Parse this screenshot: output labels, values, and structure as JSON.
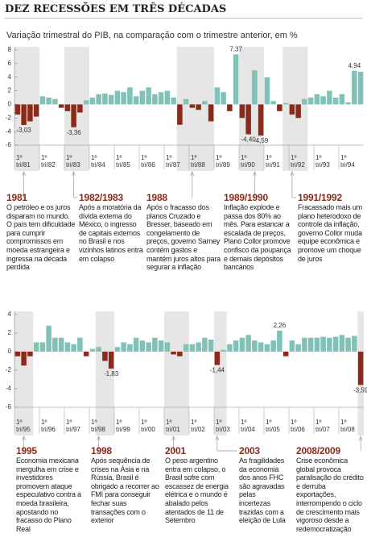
{
  "title": "DEZ RECESSÕES EM TRÊS DÉCADAS",
  "subtitle": "Variação trimestral do PIB, na comparação com o trimestre anterior, em %",
  "chart_data": [
    {
      "type": "bar",
      "quarter_mark": "1º",
      "color": "#80c2b8",
      "negative_color": "#8b2a1a",
      "categories": [
        "tri/81",
        null,
        null,
        null,
        "tri/82",
        null,
        null,
        null,
        "tri/83",
        null,
        null,
        null,
        "tri/84",
        null,
        null,
        null,
        "tri/85",
        null,
        null,
        null,
        "tri/86",
        null,
        null,
        null,
        "tri/87",
        null,
        null,
        null,
        "tri/88",
        null,
        null,
        null,
        "tri/89",
        null,
        null,
        null,
        "tri/90",
        null,
        null,
        null,
        "tri/91",
        null,
        null,
        null,
        "tri/92",
        null,
        null,
        null,
        "tri/93",
        null,
        null,
        null,
        "tri/94",
        null,
        null,
        null
      ],
      "values": [
        -1.5,
        -3.03,
        -2.5,
        -1.8,
        1.2,
        1.0,
        0.8,
        -0.5,
        -1.0,
        -3.36,
        -1.2,
        0.6,
        1.0,
        1.5,
        1.6,
        1.4,
        2.0,
        1.8,
        2.5,
        1.2,
        2.0,
        2.5,
        1.5,
        1.8,
        2.0,
        1.0,
        -3.0,
        0.8,
        -0.5,
        -0.8,
        0.5,
        -2.5,
        2.5,
        1.8,
        -1.0,
        7.37,
        -2.0,
        -4.4,
        5.0,
        -4.59,
        4.0,
        0.5,
        -1.0,
        0.2,
        -1.5,
        -2.0,
        0.8,
        1.0,
        1.5,
        1.2,
        2.0,
        1.0,
        1.5,
        0.3,
        4.94,
        4.8
      ],
      "value_labels": [
        null,
        "-3,03",
        null,
        null,
        null,
        null,
        null,
        null,
        null,
        "-3,36",
        null,
        null,
        null,
        null,
        null,
        null,
        null,
        null,
        null,
        null,
        null,
        null,
        null,
        null,
        null,
        null,
        null,
        null,
        null,
        null,
        null,
        null,
        null,
        null,
        null,
        "7,37",
        null,
        "-4,40",
        null,
        "-4,59",
        null,
        null,
        null,
        null,
        null,
        null,
        null,
        null,
        null,
        null,
        null,
        null,
        null,
        null,
        "4,94",
        null
      ],
      "ylim": [
        -6,
        8
      ],
      "yticks": [
        8,
        6,
        4,
        2,
        0,
        -2,
        -4,
        -6
      ],
      "annotations": [
        {
          "year": "1981",
          "text": "O petróleo e os juros disparam no mundo. O país tem dificuldade para cumprir compromissos em moeda estrangeira e ingressa na década perdida"
        },
        {
          "year": "1982/1983",
          "text": "Após a moratória da dívida externa do México, o ingresso de capitais externos no Brasil e nos vizinhos latinos entra em colapso"
        },
        {
          "year": "1988",
          "text": "Após o fracasso dos planos Cruzado e Bresser, baseado em congelamento de preços, governo Sarney contém gastos e mantém juros altos para segurar a inflação"
        },
        {
          "year": "1989/1990",
          "text": "Inflação explode e passa dos 80% ao mês. Para estancar a escalada de preços, Plano Collor promove confisco da poupança e demais depósitos bancários"
        },
        {
          "year": "1991/1992",
          "text": "Fracassado mais um plano heterodoxo de controle da inflação, governo Collor muda equipe econômica e promove um choque de juros"
        }
      ]
    },
    {
      "type": "bar",
      "quarter_mark": "1º",
      "color": "#80c2b8",
      "negative_color": "#8b2a1a",
      "categories": [
        "tri/95",
        null,
        null,
        null,
        "tri/96",
        null,
        null,
        null,
        "tri/97",
        null,
        null,
        null,
        "tri/98",
        null,
        null,
        null,
        "tri/99",
        null,
        null,
        null,
        "tri/00",
        null,
        null,
        null,
        "tri/01",
        null,
        null,
        null,
        "tri/02",
        null,
        null,
        null,
        "tri/03",
        null,
        null,
        null,
        "tri/04",
        null,
        null,
        null,
        "tri/05",
        null,
        null,
        null,
        "tri/06",
        null,
        null,
        null,
        "tri/07",
        null,
        null,
        null,
        "tri/08",
        null,
        null,
        null
      ],
      "values": [
        -0.5,
        -1.5,
        -0.5,
        1.0,
        1.0,
        2.8,
        1.5,
        1.5,
        1.0,
        0.8,
        1.5,
        -0.5,
        0.3,
        0.5,
        -1.0,
        -1.83,
        0.5,
        1.0,
        0.8,
        1.5,
        1.2,
        1.0,
        1.5,
        1.2,
        1.0,
        -0.3,
        -0.5,
        0.8,
        0.8,
        1.0,
        1.5,
        1.3,
        -1.44,
        0.2,
        0.8,
        1.2,
        1.5,
        1.8,
        1.2,
        1.0,
        0.8,
        1.2,
        2.26,
        -0.5,
        1.2,
        0.8,
        1.5,
        1.5,
        1.5,
        1.6,
        1.5,
        1.6,
        1.8,
        1.5,
        1.7,
        -3.59
      ],
      "value_labels": [
        null,
        null,
        null,
        null,
        null,
        null,
        null,
        null,
        null,
        null,
        null,
        null,
        null,
        null,
        null,
        "-1,83",
        null,
        null,
        null,
        null,
        null,
        null,
        null,
        null,
        null,
        null,
        null,
        null,
        null,
        null,
        null,
        null,
        "-1,44",
        null,
        null,
        null,
        null,
        null,
        null,
        null,
        null,
        null,
        "2,26",
        null,
        null,
        null,
        null,
        null,
        null,
        null,
        null,
        null,
        null,
        null,
        null,
        "-3,59"
      ],
      "ylim": [
        -6,
        4
      ],
      "yticks": [
        4,
        2,
        0,
        -2,
        -4,
        -6
      ],
      "annotations": [
        {
          "year": "1995",
          "text": "Economia mexicana mergulha em crise e investidores promovem ataque especulativo contra a moeda brasileira, apostando no fracasso do Plano Real"
        },
        {
          "year": "1998",
          "text": "Após sequência de crises na Ásia e na Rússia, Brasil é obrigado a recorrer ao FMI para conseguir fechar suas transações com o exterior"
        },
        {
          "year": "2001",
          "text": "O peso argentino entra em colapso, o Brasil sofre com escassez de energia elétrica e o mundo é abalado pelos atentados de 11 de Setembro"
        },
        {
          "year": "2003",
          "text": "As fragilidades da economia dos anos FHC são agravadas pelas incertezas trazidas com a eleição de Lula"
        },
        {
          "year": "2008/2009",
          "text": "Crise econômica global provoca paralisação do crédito e derruba exportações, interrompendo o ciclo de crescimento mais vigoroso desde a redemocratização"
        }
      ]
    }
  ]
}
